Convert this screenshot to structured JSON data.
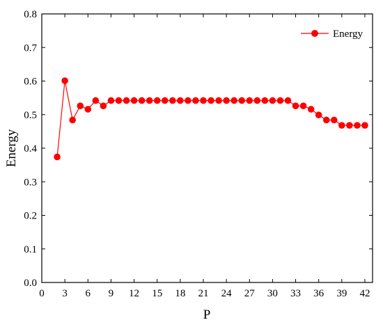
{
  "chart_data": {
    "type": "line",
    "xlabel": "P",
    "ylabel": "Energy",
    "xlim": [
      0,
      43
    ],
    "ylim": [
      0,
      0.8
    ],
    "xticks": [
      0,
      3,
      6,
      9,
      12,
      15,
      18,
      21,
      24,
      27,
      30,
      33,
      36,
      39,
      42
    ],
    "yticks": [
      "0.0",
      "0.1",
      "0.2",
      "0.3",
      "0.4",
      "0.5",
      "0.6",
      "0.7",
      "0.8"
    ],
    "grid": false,
    "legend_position": "top-right",
    "series": [
      {
        "name": "Energy",
        "color": "#ff0000",
        "marker": "circle",
        "x": [
          2,
          3,
          4,
          5,
          6,
          7,
          8,
          9,
          10,
          11,
          12,
          13,
          14,
          15,
          16,
          17,
          18,
          19,
          20,
          21,
          22,
          23,
          24,
          25,
          26,
          27,
          28,
          29,
          30,
          31,
          32,
          33,
          34,
          35,
          36,
          37,
          38,
          39,
          40,
          41,
          42
        ],
        "values": [
          0.374,
          0.601,
          0.484,
          0.526,
          0.516,
          0.542,
          0.526,
          0.542,
          0.542,
          0.542,
          0.542,
          0.542,
          0.542,
          0.542,
          0.542,
          0.542,
          0.542,
          0.542,
          0.542,
          0.542,
          0.542,
          0.542,
          0.542,
          0.542,
          0.542,
          0.542,
          0.542,
          0.542,
          0.542,
          0.542,
          0.542,
          0.526,
          0.526,
          0.516,
          0.499,
          0.484,
          0.484,
          0.468,
          0.468,
          0.468,
          0.468
        ]
      }
    ]
  }
}
